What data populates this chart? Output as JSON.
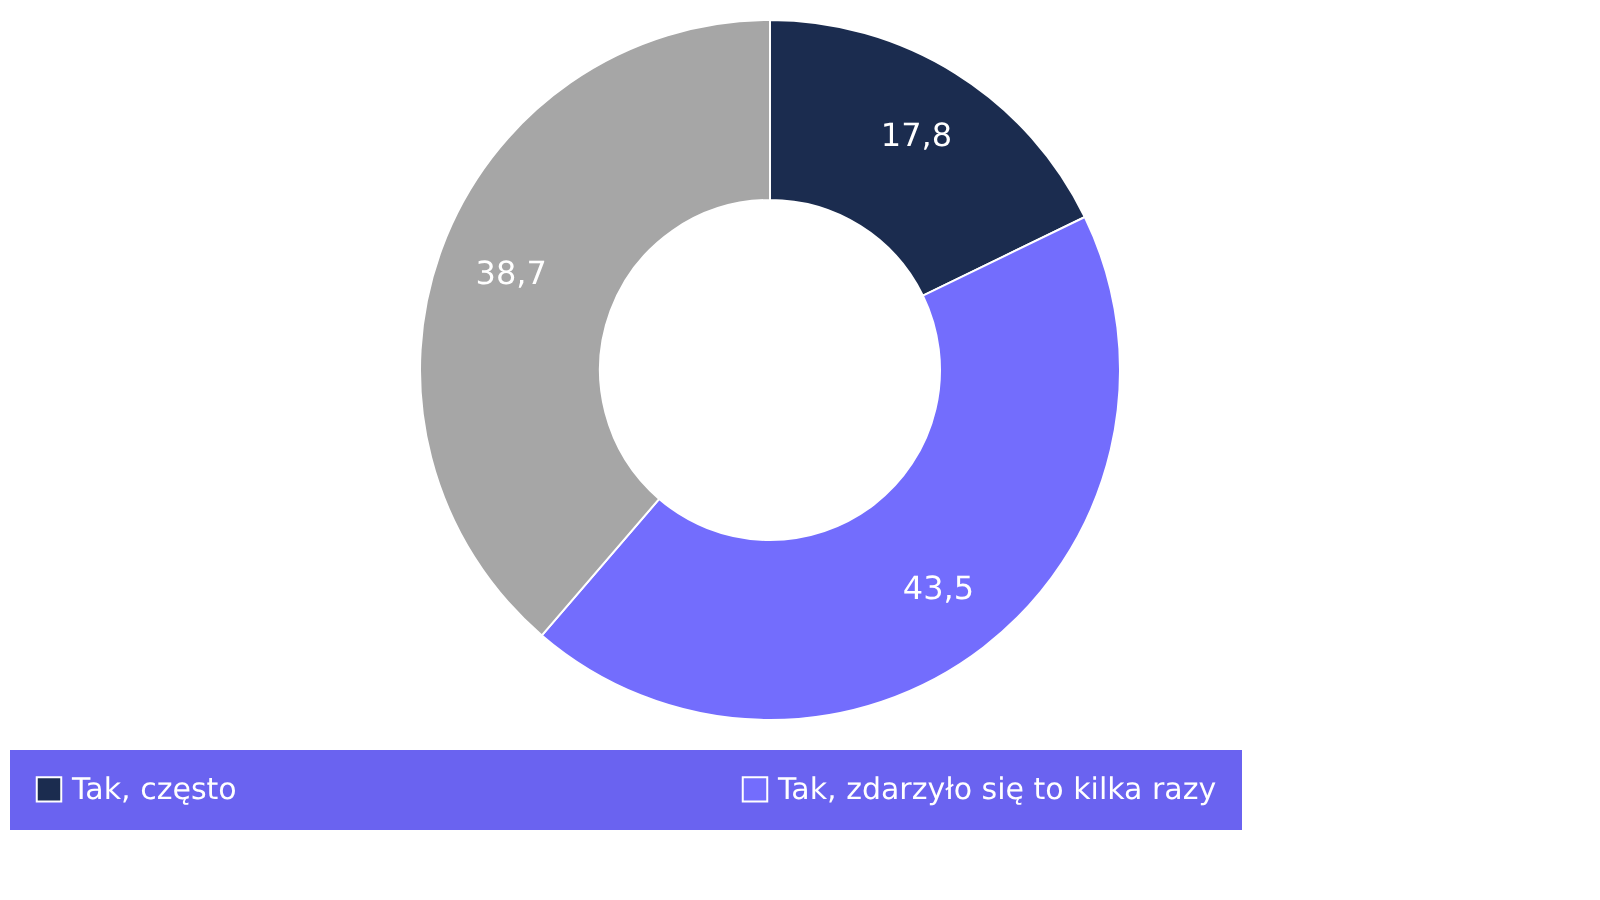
{
  "chart_data": {
    "type": "donut",
    "categories": [
      "Tak, często",
      "Tak, zdarzyło się to kilka razy",
      null
    ],
    "values": [
      17.8,
      43.5,
      38.7
    ],
    "value_labels": [
      "17,8",
      "43,5",
      "38,7"
    ],
    "colors": [
      "#1b2c4f",
      "#736dfd",
      "#a6a6a6"
    ],
    "legend": "bottom"
  }
}
